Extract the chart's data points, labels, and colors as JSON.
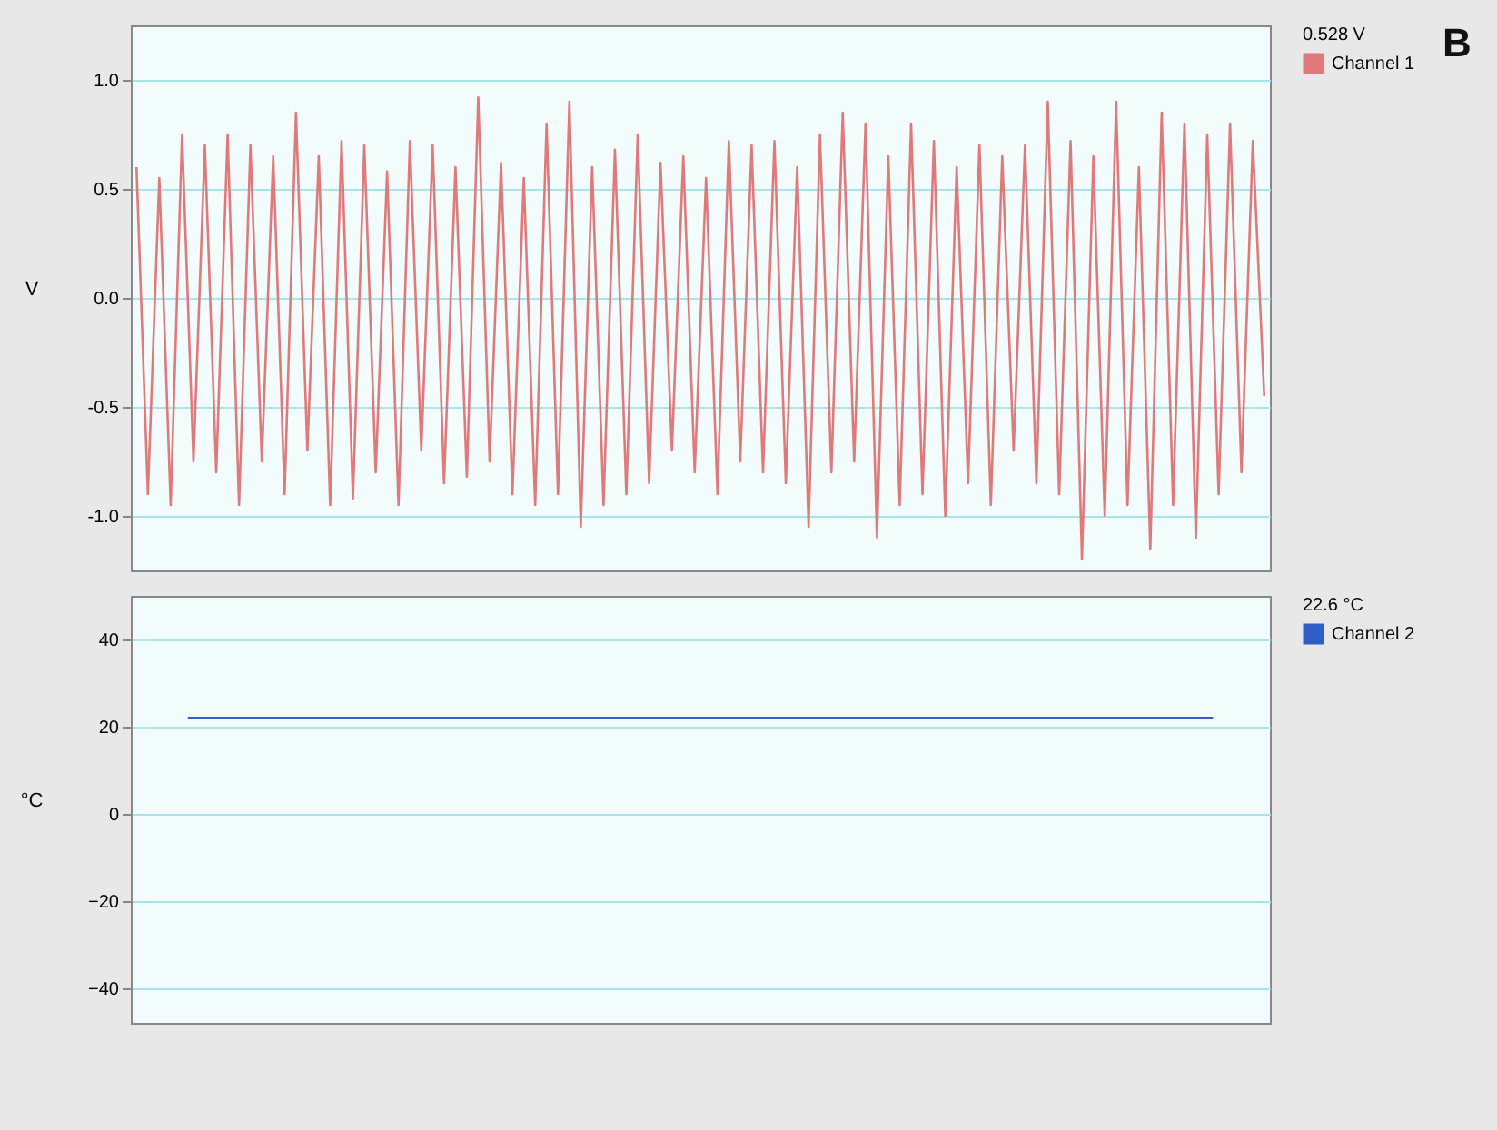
{
  "chart_data": [
    {
      "type": "line",
      "ylabel": "V",
      "legend_title": "0.528 V",
      "legend": "top right",
      "grid": "y",
      "tick_labels": "y",
      "annotations": [
        "B"
      ],
      "categories": [
        null,
        null,
        null,
        null,
        null,
        null,
        null,
        null,
        null,
        null,
        null,
        null,
        null,
        null,
        null,
        null,
        null,
        null,
        null,
        null,
        null,
        null,
        null,
        null,
        null,
        null,
        null,
        null,
        null,
        null,
        null,
        null,
        null,
        null,
        null,
        null,
        null,
        null,
        null,
        null,
        null,
        null,
        null,
        null,
        null,
        null,
        null,
        null,
        null,
        null,
        null,
        null,
        null,
        null,
        null,
        null,
        null,
        null,
        null,
        null,
        null,
        null,
        null,
        null,
        null,
        null,
        null,
        null,
        null,
        null,
        null,
        null,
        null,
        null,
        null,
        null,
        null,
        null,
        null,
        null,
        null,
        null,
        null,
        null,
        null,
        null,
        null,
        null,
        null,
        null,
        null,
        null,
        null,
        null,
        null,
        null,
        null,
        null,
        null,
        null
      ],
      "ylim": [
        -1.25,
        1.25
      ],
      "yticks": [
        {
          "value": 1,
          "label": "1.0"
        },
        {
          "value": 0.5,
          "label": "0.5"
        },
        {
          "value": 0,
          "label": "0.0"
        },
        {
          "value": -0.5,
          "label": "-0.5"
        },
        {
          "value": -1,
          "label": "-1.0"
        }
      ],
      "series": [
        {
          "name": "Channel 1",
          "color": "#e07a7a",
          "values": [
            0.6,
            -0.9,
            0.55,
            -0.95,
            0.75,
            -0.75,
            0.7,
            -0.8,
            0.75,
            -0.95,
            0.7,
            -0.75,
            0.65,
            -0.9,
            0.85,
            -0.7,
            0.65,
            -0.95,
            0.72,
            -0.92,
            0.7,
            -0.8,
            0.58,
            -0.95,
            0.72,
            -0.7,
            0.7,
            -0.85,
            0.6,
            -0.82,
            0.92,
            -0.75,
            0.62,
            -0.9,
            0.55,
            -0.95,
            0.8,
            -0.9,
            0.9,
            -1.05,
            0.6,
            -0.95,
            0.68,
            -0.9,
            0.75,
            -0.85,
            0.62,
            -0.7,
            0.65,
            -0.8,
            0.55,
            -0.9,
            0.72,
            -0.75,
            0.7,
            -0.8,
            0.72,
            -0.85,
            0.6,
            -1.05,
            0.75,
            -0.8,
            0.85,
            -0.75,
            0.8,
            -1.1,
            0.65,
            -0.95,
            0.8,
            -0.9,
            0.72,
            -1.0,
            0.6,
            -0.85,
            0.7,
            -0.95,
            0.65,
            -0.7,
            0.7,
            -0.85,
            0.9,
            -0.9,
            0.72,
            -1.2,
            0.65,
            -1.0,
            0.9,
            -0.95,
            0.6,
            -1.15,
            0.85,
            -0.95,
            0.8,
            -1.1,
            0.75,
            -0.9,
            0.8,
            -0.8,
            0.72,
            -0.45
          ]
        }
      ]
    },
    {
      "type": "line",
      "ylabel": "°C",
      "legend_title": "22.6 °C",
      "legend": "top right",
      "grid": "y",
      "tick_labels": "y",
      "categories": [
        null,
        null,
        null,
        null,
        null,
        null,
        null,
        null,
        null,
        null
      ],
      "ylim": [
        -48,
        50
      ],
      "yticks": [
        40,
        20,
        0,
        -20,
        -40
      ],
      "series": [
        {
          "name": "Channel 2",
          "color": "#2f5fc4",
          "values": [
            22,
            22,
            22,
            22,
            22,
            22,
            22,
            22,
            22,
            22
          ]
        }
      ]
    }
  ]
}
